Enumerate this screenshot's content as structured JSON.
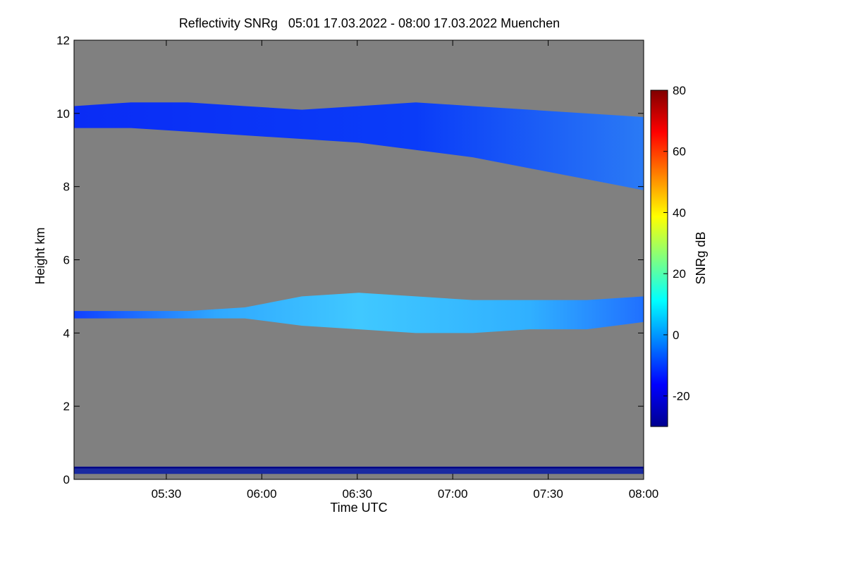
{
  "chart_data": {
    "type": "heatmap",
    "title": "Reflectivity SNRg   05:01 17.03.2022 - 08:00 17.03.2022 Muenchen",
    "xlabel": "Time UTC",
    "ylabel": "Height km",
    "xlim_minutes_utc": [
      301,
      480
    ],
    "ylim": [
      0,
      12
    ],
    "x_ticks": [
      {
        "value": 330,
        "label": "05:30"
      },
      {
        "value": 360,
        "label": "06:00"
      },
      {
        "value": 390,
        "label": "06:30"
      },
      {
        "value": 420,
        "label": "07:00"
      },
      {
        "value": 450,
        "label": "07:30"
      },
      {
        "value": 480,
        "label": "08:00"
      }
    ],
    "y_ticks": [
      {
        "value": 0,
        "label": "0"
      },
      {
        "value": 2,
        "label": "2"
      },
      {
        "value": 4,
        "label": "4"
      },
      {
        "value": 6,
        "label": "6"
      },
      {
        "value": 8,
        "label": "8"
      },
      {
        "value": 10,
        "label": "10"
      },
      {
        "value": 12,
        "label": "12"
      }
    ],
    "colorbar": {
      "label": "SNRg dB",
      "range": [
        -30,
        80
      ],
      "ticks": [
        {
          "value": -20,
          "label": "-20"
        },
        {
          "value": 0,
          "label": "0"
        },
        {
          "value": 20,
          "label": "20"
        },
        {
          "value": 40,
          "label": "40"
        },
        {
          "value": 60,
          "label": "60"
        },
        {
          "value": 80,
          "label": "80"
        }
      ],
      "colors": [
        "#00008f",
        "#0000ff",
        "#0080ff",
        "#00ffff",
        "#80ff80",
        "#ffff00",
        "#ff8000",
        "#ff0000",
        "#800000"
      ]
    },
    "background_color": "#808080",
    "layers": [
      {
        "base_km": [
          9.6,
          9.6,
          9.5,
          9.4,
          9.3,
          9.2,
          9.0,
          8.8,
          8.5,
          8.2,
          7.9
        ],
        "top_km": [
          10.2,
          10.3,
          10.3,
          10.2,
          10.1,
          10.2,
          10.3,
          10.2,
          10.1,
          10.0,
          9.9
        ],
        "snr_db": -15
      },
      {
        "base_km": [
          4.4,
          4.4,
          4.4,
          4.4,
          4.2,
          4.1,
          4.0,
          4.0,
          4.1,
          4.1,
          4.3
        ],
        "top_km": [
          4.6,
          4.6,
          4.6,
          4.7,
          5.0,
          5.1,
          5.0,
          4.9,
          4.9,
          4.9,
          5.0
        ],
        "snr_db": 5
      }
    ]
  }
}
